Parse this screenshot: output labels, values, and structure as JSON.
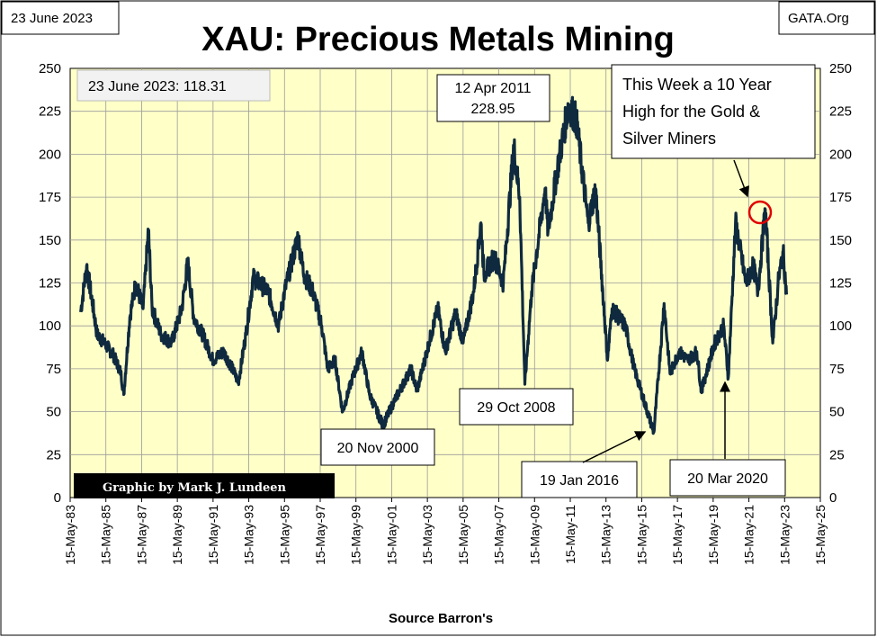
{
  "header": {
    "title": "XAU: Precious Metals Mining",
    "date_label": "23 June 2023",
    "source_label": "GATA.Org"
  },
  "credit": "Graphic by Mark J. Lundeen",
  "current_value_label": "23 June 2023:  118.31",
  "colors": {
    "plot_bg": "#ffffc8",
    "series": "#0f2a3f",
    "highlight_circle": "#e00000",
    "credit_bg": "#000000",
    "credit_text": "#ffffff"
  },
  "chart_data": {
    "type": "line",
    "title": "XAU: Precious Metals Mining",
    "xlabel": "Source Barron's",
    "ylabel": "",
    "ylim": [
      0,
      250
    ],
    "xlim": [
      "1983-05-15",
      "2025-05-15"
    ],
    "y_ticks": [
      "0",
      "25",
      "50",
      "75",
      "100",
      "125",
      "150",
      "175",
      "200",
      "225",
      "250"
    ],
    "x_ticks": [
      "15-May-83",
      "15-May-85",
      "15-May-87",
      "15-May-89",
      "15-May-91",
      "15-May-93",
      "15-May-95",
      "15-May-97",
      "15-May-99",
      "15-May-01",
      "15-May-03",
      "15-May-05",
      "15-May-07",
      "15-May-09",
      "15-May-11",
      "15-May-13",
      "15-May-15",
      "15-May-17",
      "15-May-19",
      "15-May-21",
      "15-May-23",
      "15-May-25"
    ],
    "grid": true,
    "series": [
      {
        "points": [
          [
            "1983-12-15",
            108
          ],
          [
            "1984-04-15",
            135
          ],
          [
            "1984-08-15",
            113
          ],
          [
            "1984-11-15",
            95
          ],
          [
            "1985-04-15",
            90
          ],
          [
            "1985-10-15",
            83
          ],
          [
            "1986-03-15",
            73
          ],
          [
            "1986-05-15",
            60
          ],
          [
            "1986-09-15",
            105
          ],
          [
            "1987-01-15",
            125
          ],
          [
            "1987-06-15",
            110
          ],
          [
            "1987-10-01",
            156
          ],
          [
            "1987-12-15",
            110
          ],
          [
            "1988-06-15",
            95
          ],
          [
            "1989-01-15",
            90
          ],
          [
            "1989-08-15",
            110
          ],
          [
            "1989-12-15",
            137
          ],
          [
            "1990-04-15",
            105
          ],
          [
            "1990-10-15",
            95
          ],
          [
            "1991-05-15",
            80
          ],
          [
            "1991-12-15",
            85
          ],
          [
            "1992-06-15",
            75
          ],
          [
            "1992-10-15",
            67
          ],
          [
            "1993-03-15",
            95
          ],
          [
            "1993-08-15",
            128
          ],
          [
            "1993-12-15",
            125
          ],
          [
            "1994-06-15",
            120
          ],
          [
            "1995-01-15",
            100
          ],
          [
            "1995-05-15",
            120
          ],
          [
            "1996-02-15",
            152
          ],
          [
            "1996-06-15",
            130
          ],
          [
            "1996-12-15",
            120
          ],
          [
            "1997-06-15",
            100
          ],
          [
            "1997-10-15",
            75
          ],
          [
            "1998-03-15",
            80
          ],
          [
            "1998-08-15",
            50
          ],
          [
            "1999-02-15",
            68
          ],
          [
            "1999-09-15",
            85
          ],
          [
            "2000-02-15",
            60
          ],
          [
            "2000-11-20",
            42
          ],
          [
            "2001-06-15",
            55
          ],
          [
            "2002-06-15",
            75
          ],
          [
            "2002-10-15",
            62
          ],
          [
            "2003-06-15",
            90
          ],
          [
            "2003-12-15",
            110
          ],
          [
            "2004-05-15",
            85
          ],
          [
            "2004-12-15",
            108
          ],
          [
            "2005-05-15",
            90
          ],
          [
            "2005-12-15",
            120
          ],
          [
            "2006-05-15",
            160
          ],
          [
            "2006-07-15",
            130
          ],
          [
            "2007-02-15",
            140
          ],
          [
            "2007-08-15",
            125
          ],
          [
            "2008-03-15",
            205
          ],
          [
            "2008-07-15",
            175
          ],
          [
            "2008-10-29",
            66
          ],
          [
            "2009-03-15",
            120
          ],
          [
            "2009-12-15",
            180
          ],
          [
            "2010-02-15",
            155
          ],
          [
            "2010-08-15",
            190
          ],
          [
            "2011-04-12",
            229
          ],
          [
            "2011-09-15",
            220
          ],
          [
            "2012-05-15",
            160
          ],
          [
            "2012-10-15",
            180
          ],
          [
            "2013-06-15",
            80
          ],
          [
            "2013-09-15",
            110
          ],
          [
            "2014-06-15",
            100
          ],
          [
            "2014-12-15",
            75
          ],
          [
            "2015-07-15",
            55
          ],
          [
            "2016-01-19",
            38
          ],
          [
            "2016-08-15",
            113
          ],
          [
            "2016-12-15",
            72
          ],
          [
            "2017-06-15",
            85
          ],
          [
            "2017-12-15",
            80
          ],
          [
            "2018-06-15",
            85
          ],
          [
            "2018-09-15",
            62
          ],
          [
            "2019-06-15",
            90
          ],
          [
            "2019-12-15",
            100
          ],
          [
            "2020-03-20",
            70
          ],
          [
            "2020-08-15",
            160
          ],
          [
            "2021-03-15",
            125
          ],
          [
            "2021-08-15",
            135
          ],
          [
            "2021-11-15",
            120
          ],
          [
            "2022-04-15",
            168
          ],
          [
            "2022-09-15",
            90
          ],
          [
            "2023-01-15",
            128
          ],
          [
            "2023-04-15",
            143
          ],
          [
            "2023-06-23",
            118.31
          ]
        ]
      }
    ],
    "annotations": [
      {
        "lines": [
          "12 Apr 2011",
          "228.95"
        ]
      },
      {
        "lines": [
          "This Week a 10 Year",
          "High for the Gold &",
          "Silver Miners"
        ]
      },
      {
        "lines": [
          "20 Nov 2000"
        ]
      },
      {
        "lines": [
          "29 Oct 2008"
        ]
      },
      {
        "lines": [
          "19 Jan 2016"
        ]
      },
      {
        "lines": [
          "20 Mar 2020"
        ]
      }
    ]
  }
}
